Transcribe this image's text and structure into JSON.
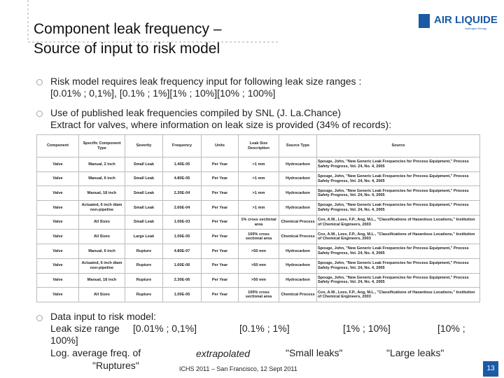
{
  "header": {
    "title_lines": [
      "Component leak frequency –",
      "Source of input to risk model"
    ],
    "logo": "AIR LIQUIDE",
    "logo_sub": "Hydrogen Energy"
  },
  "bullets": [
    {
      "lines": [
        "Risk model requires leak frequency input for following leak size ranges :",
        "[0.01% ; 0,1%], [0.1% ; 1%][1% ; 10%][10% ; 100%]"
      ]
    },
    {
      "lines": [
        "Use of published leak frequencies compiled by SNL (J. La.Chance)",
        "Extract for valves, where information on leak size is provided (34% of records):"
      ]
    }
  ],
  "table": {
    "headers": [
      "Component",
      "Specific Component Type",
      "Severity",
      "Frequency",
      "Units",
      "Leak Size Description",
      "Source Type",
      "Source"
    ],
    "rows": [
      [
        "Valve",
        "Manual, 2 inch",
        "Small Leak",
        "1.40E-05",
        "Per Year",
        ">1 mm",
        "Hydrocarbon",
        "Spouge, John, \"New Generic Leak Frequencies for Process Equipment,\" Process Safety Progress, Vol. 24, No. 4, 2005"
      ],
      [
        "Valve",
        "Manual, 6 inch",
        "Small Leak",
        "4.80E-05",
        "Per Year",
        ">1 mm",
        "Hydrocarbon",
        "Spouge, John, \"New Generic Leak Frequencies for Process Equipment,\" Process Safety Progress, Vol. 24, No. 4, 2005"
      ],
      [
        "Valve",
        "Manual, 18 inch",
        "Small Leak",
        "2.20E-04",
        "Per Year",
        ">1 mm",
        "Hydrocarbon",
        "Spouge, John, \"New Generic Leak Frequencies for Process Equipment,\" Process Safety Progress, Vol. 24, No. 4, 2005"
      ],
      [
        "Valve",
        "Actuated, 6 inch diam non-pipeline",
        "Small Leak",
        "2.60E-04",
        "Per Year",
        ">1 mm",
        "Hydrocarbon",
        "Spouge, John, \"New Generic Leak Frequencies for Process Equipment,\" Process Safety Progress, Vol. 24, No. 4, 2005"
      ],
      [
        "Valve",
        "All Sizes",
        "Small Leak",
        "1.00E-03",
        "Per Year",
        "1% cross sectional area",
        "Chemical Process",
        "Cox, A.W., Lees, F.P., Ang, M.L., \"Classifications of Hazardous Locations,\" Institution of Chemical Engineers, 2003"
      ],
      [
        "Valve",
        "All Sizes",
        "Large Leak",
        "1.00E-05",
        "Per Year",
        "100% cross sectional area",
        "Chemical Process",
        "Cox, A.W., Lees, F.P., Ang, M.L., \"Classifications of Hazardous Locations,\" Institution of Chemical Engineers, 2003"
      ],
      [
        "Valve",
        "Manual, 6 inch",
        "Rupture",
        "4.80E-07",
        "Per Year",
        ">50 mm",
        "Hydrocarbon",
        "Spouge, John, \"New Generic Leak Frequencies for Process Equipment,\" Process Safety Progress, Vol. 24, No. 4, 2005"
      ],
      [
        "Valve",
        "Actuated, 6 inch diam non-pipeline",
        "Rupture",
        "1.60E-06",
        "Per Year",
        ">50 mm",
        "Hydrocarbon",
        "Spouge, John, \"New Generic Leak Frequencies for Process Equipment,\" Process Safety Progress, Vol. 24, No. 4, 2005"
      ],
      [
        "Valve",
        "Manual, 18 inch",
        "Rupture",
        "2.30E-06",
        "Per Year",
        ">50 mm",
        "Hydrocarbon",
        "Spouge, John, \"New Generic Leak Frequencies for Process Equipment,\" Process Safety Progress, Vol. 24, No. 4, 2005"
      ],
      [
        "Valve",
        "All Sizes",
        "Rupture",
        "1.00E-05",
        "Per Year",
        "100% cross sectional area",
        "Chemical Process",
        "Cox, A.W., Lees, F.P., Ang, M.L., \"Classifications of Hazardous Locations,\" Institution of Chemical Engineers, 2003"
      ]
    ]
  },
  "summary": {
    "intro": "Data input to risk model:",
    "range_label": "Leak size range",
    "ranges": [
      "[0.01% ; 0,1%]",
      "[0.1% ; 1%]",
      "[1% ; 10%]",
      "[10% ;",
      "100%]"
    ],
    "freq_label": "Log. average freq. of",
    "freq_label_2": "\"Ruptures\"",
    "sources": [
      "extrapolated",
      "\"Small leaks\"",
      "\"Large leaks\""
    ]
  },
  "footer": {
    "event": "ICHS 2011 – San Francisco, 12 Sept 2011",
    "page": "13"
  }
}
